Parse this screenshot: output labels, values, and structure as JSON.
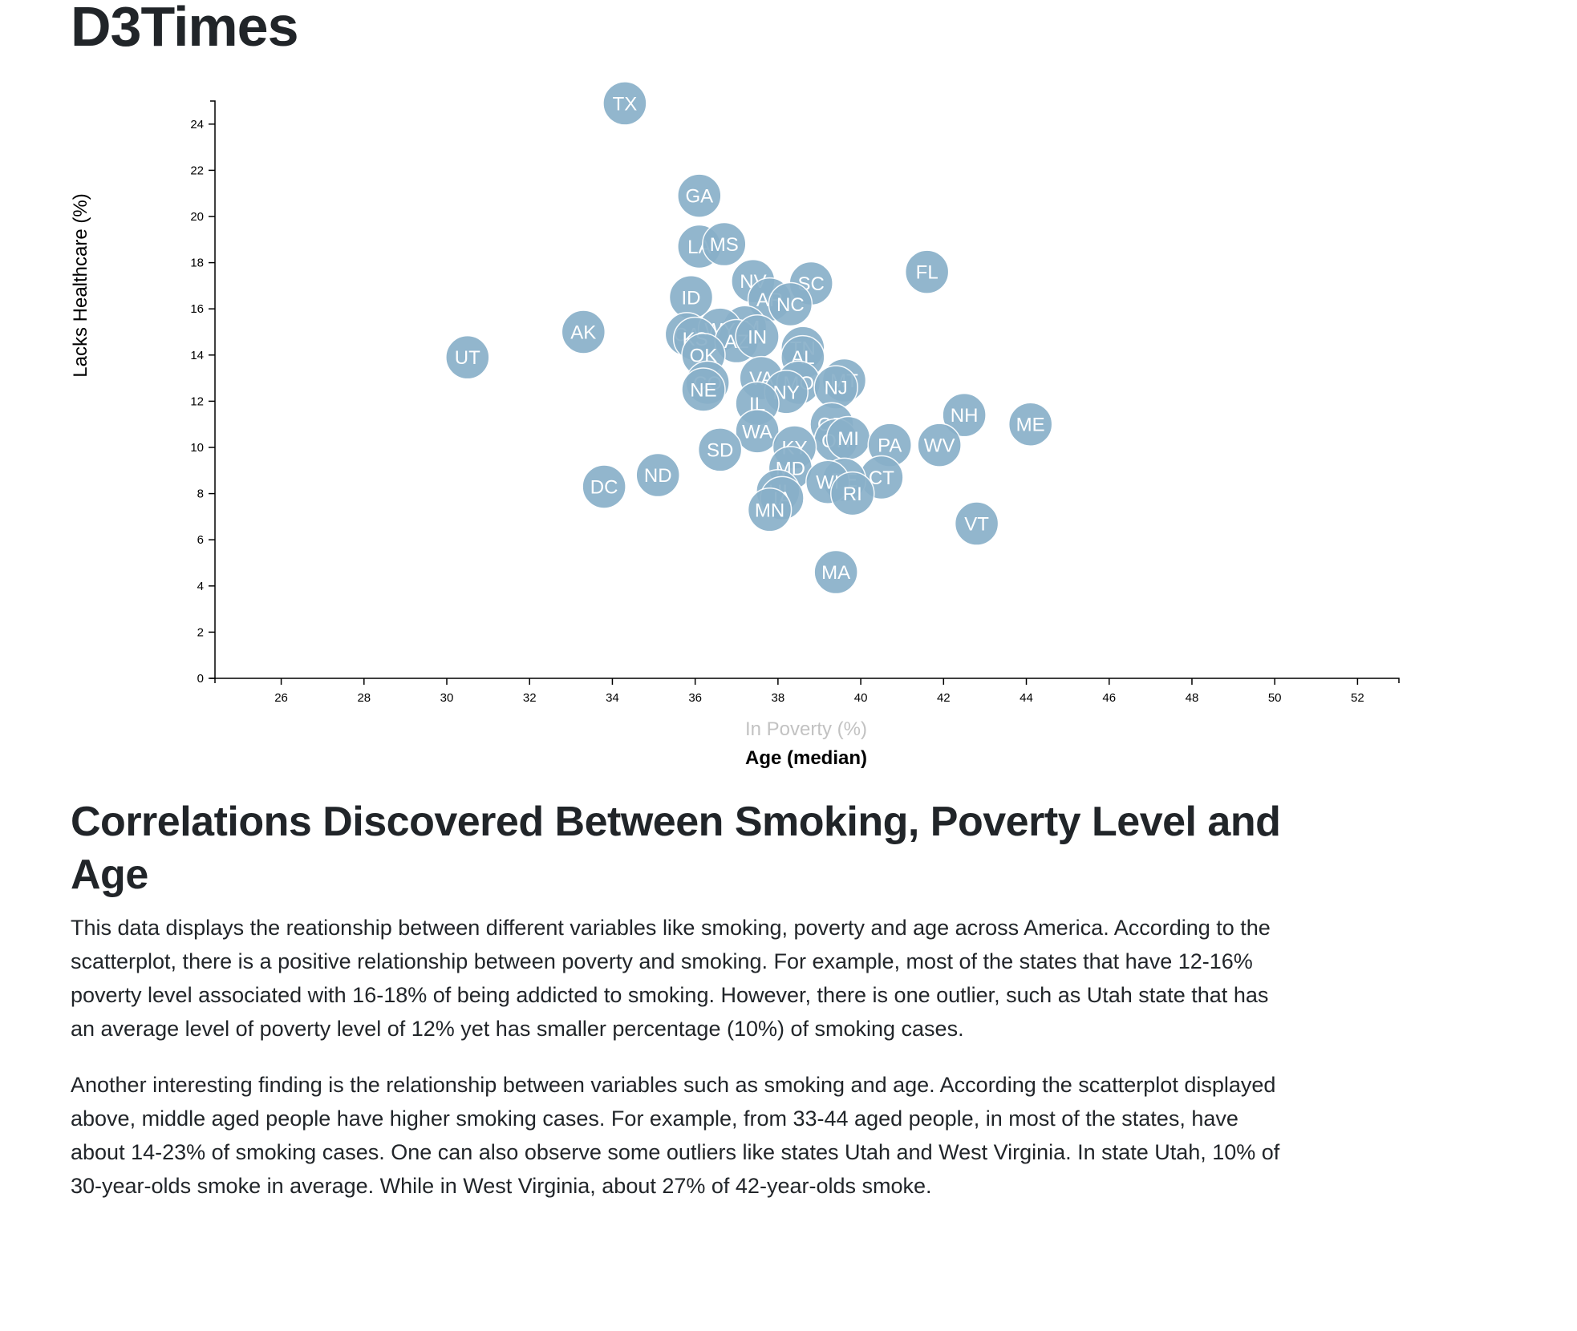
{
  "site": {
    "title": "D3Times"
  },
  "chart_data": {
    "type": "scatter",
    "xlabel_options": [
      {
        "label": "In Poverty (%)",
        "active": false
      },
      {
        "label": "Age (median)",
        "active": true
      }
    ],
    "ylabel": "Lacks Healthcare (%)",
    "xlim": [
      24.4,
      53
    ],
    "ylim": [
      0,
      25
    ],
    "xticks": [
      26,
      28,
      30,
      32,
      34,
      36,
      38,
      40,
      42,
      44,
      46,
      48,
      50,
      52
    ],
    "yticks": [
      0,
      2,
      4,
      6,
      8,
      10,
      12,
      14,
      16,
      18,
      20,
      22,
      24
    ],
    "points": [
      {
        "abbr": "TX",
        "x": 34.3,
        "y": 24.9
      },
      {
        "abbr": "GA",
        "x": 36.1,
        "y": 20.9
      },
      {
        "abbr": "LA",
        "x": 36.1,
        "y": 18.7
      },
      {
        "abbr": "MS",
        "x": 36.7,
        "y": 18.8
      },
      {
        "abbr": "FL",
        "x": 41.6,
        "y": 17.6
      },
      {
        "abbr": "NV",
        "x": 37.4,
        "y": 17.2
      },
      {
        "abbr": "SC",
        "x": 38.8,
        "y": 17.1
      },
      {
        "abbr": "AR",
        "x": 37.8,
        "y": 16.4
      },
      {
        "abbr": "NC",
        "x": 38.3,
        "y": 16.2
      },
      {
        "abbr": "ID",
        "x": 35.9,
        "y": 16.5
      },
      {
        "abbr": "AK",
        "x": 33.3,
        "y": 15.0
      },
      {
        "abbr": "NM",
        "x": 37.2,
        "y": 15.2
      },
      {
        "abbr": "CA",
        "x": 35.8,
        "y": 14.9
      },
      {
        "abbr": "WY",
        "x": 36.6,
        "y": 15.1
      },
      {
        "abbr": "KS",
        "x": 36.0,
        "y": 14.7
      },
      {
        "abbr": "AZ",
        "x": 37.0,
        "y": 14.6
      },
      {
        "abbr": "IN",
        "x": 37.5,
        "y": 14.8
      },
      {
        "abbr": "UT",
        "x": 30.5,
        "y": 13.9
      },
      {
        "abbr": "OK",
        "x": 36.2,
        "y": 14.0
      },
      {
        "abbr": "TN",
        "x": 38.6,
        "y": 14.3
      },
      {
        "abbr": "AL",
        "x": 38.6,
        "y": 13.9
      },
      {
        "abbr": "CO",
        "x": 36.3,
        "y": 12.8
      },
      {
        "abbr": "NE",
        "x": 36.2,
        "y": 12.5
      },
      {
        "abbr": "VA",
        "x": 37.6,
        "y": 13.0
      },
      {
        "abbr": "MO",
        "x": 38.5,
        "y": 12.8
      },
      {
        "abbr": "MT",
        "x": 39.6,
        "y": 12.9
      },
      {
        "abbr": "NJ",
        "x": 39.4,
        "y": 12.6
      },
      {
        "abbr": "NY",
        "x": 38.2,
        "y": 12.4
      },
      {
        "abbr": "IL",
        "x": 37.5,
        "y": 11.9
      },
      {
        "abbr": "NH",
        "x": 42.5,
        "y": 11.4
      },
      {
        "abbr": "ME",
        "x": 44.1,
        "y": 11.0
      },
      {
        "abbr": "WA",
        "x": 37.5,
        "y": 10.7
      },
      {
        "abbr": "OR",
        "x": 39.3,
        "y": 11.0
      },
      {
        "abbr": "OH",
        "x": 39.4,
        "y": 10.3
      },
      {
        "abbr": "MI",
        "x": 39.7,
        "y": 10.4
      },
      {
        "abbr": "PA",
        "x": 40.7,
        "y": 10.1
      },
      {
        "abbr": "WV",
        "x": 41.9,
        "y": 10.1
      },
      {
        "abbr": "KY",
        "x": 38.4,
        "y": 10.0
      },
      {
        "abbr": "SD",
        "x": 36.6,
        "y": 9.9
      },
      {
        "abbr": "MD",
        "x": 38.3,
        "y": 9.1
      },
      {
        "abbr": "ND",
        "x": 35.1,
        "y": 8.8
      },
      {
        "abbr": "DC",
        "x": 33.8,
        "y": 8.3
      },
      {
        "abbr": "CT",
        "x": 40.5,
        "y": 8.7
      },
      {
        "abbr": "DE",
        "x": 39.6,
        "y": 8.6
      },
      {
        "abbr": "WI",
        "x": 39.2,
        "y": 8.5
      },
      {
        "abbr": "RI",
        "x": 39.8,
        "y": 8.0
      },
      {
        "abbr": "HI",
        "x": 38.0,
        "y": 8.1
      },
      {
        "abbr": "IA",
        "x": 38.1,
        "y": 7.8
      },
      {
        "abbr": "MN",
        "x": 37.8,
        "y": 7.3
      },
      {
        "abbr": "VT",
        "x": 42.8,
        "y": 6.7
      },
      {
        "abbr": "MA",
        "x": 39.4,
        "y": 4.6
      }
    ]
  },
  "article": {
    "heading": "Correlations Discovered Between Smoking, Poverty Level and Age",
    "paragraphs": [
      "This data displays the reationship between different variables like smoking, poverty and age across America. According to the scatterplot, there is a positive relationship between poverty and smoking. For example, most of the states that have 12-16% poverty level associated with 16-18% of being addicted to smoking. However, there is one outlier, such as Utah state that has an average level of poverty level of 12% yet has smaller percentage (10%) of smoking cases.",
      "Another interesting finding is the relationship between variables such as smoking and age. According the scatterplot displayed above, middle aged people have higher smoking cases. For example, from 33-44 aged people, in most of the states, have about 14-23% of smoking cases. One can also observe some outliers like states Utah and West Virginia. In state Utah, 10% of 30-year-olds smoke in average. While in West Virginia, about 27% of 42-year-olds smoke."
    ]
  }
}
